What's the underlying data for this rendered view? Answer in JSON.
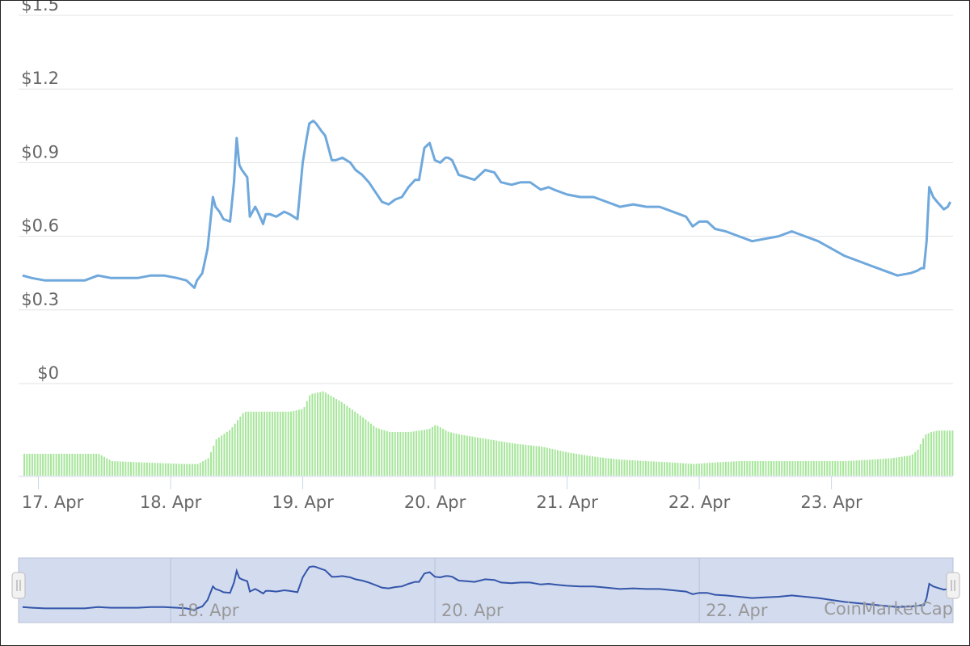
{
  "chart_data": {
    "type": "line",
    "price": {
      "ylim": [
        0,
        1.5
      ],
      "yticks": [
        0,
        0.3,
        0.6,
        0.9,
        1.2,
        1.5
      ],
      "ytick_labels": [
        "$0",
        "$0.3",
        "$0.6",
        "$0.9",
        "$1.2",
        "$1.5"
      ],
      "x": [
        16.88,
        16.95,
        17.05,
        17.15,
        17.25,
        17.35,
        17.45,
        17.55,
        17.65,
        17.75,
        17.85,
        17.95,
        18.05,
        18.12,
        18.18,
        18.2,
        18.24,
        18.28,
        18.32,
        18.34,
        18.37,
        18.4,
        18.45,
        18.48,
        18.5,
        18.52,
        18.54,
        18.58,
        18.6,
        18.64,
        18.66,
        18.7,
        18.72,
        18.75,
        18.8,
        18.86,
        18.9,
        18.96,
        19.0,
        19.03,
        19.05,
        19.08,
        19.1,
        19.14,
        19.17,
        19.2,
        19.22,
        19.25,
        19.3,
        19.36,
        19.4,
        19.45,
        19.5,
        19.55,
        19.6,
        19.65,
        19.7,
        19.75,
        19.8,
        19.85,
        19.88,
        19.92,
        19.96,
        20.0,
        20.04,
        20.08,
        20.1,
        20.13,
        20.18,
        20.24,
        20.3,
        20.38,
        20.45,
        20.5,
        20.58,
        20.65,
        20.72,
        20.8,
        20.86,
        20.9,
        20.95,
        21.0,
        21.1,
        21.2,
        21.3,
        21.4,
        21.5,
        21.6,
        21.7,
        21.8,
        21.9,
        21.95,
        22.0,
        22.06,
        22.12,
        22.2,
        22.3,
        22.4,
        22.5,
        22.6,
        22.7,
        22.8,
        22.9,
        23.0,
        23.1,
        23.2,
        23.3,
        23.4,
        23.5,
        23.6,
        23.65,
        23.68,
        23.7,
        23.72,
        23.74,
        23.77,
        23.8,
        23.85,
        23.88,
        23.9
      ],
      "y": [
        0.44,
        0.43,
        0.42,
        0.42,
        0.42,
        0.42,
        0.44,
        0.43,
        0.43,
        0.43,
        0.44,
        0.44,
        0.43,
        0.42,
        0.39,
        0.42,
        0.45,
        0.55,
        0.76,
        0.72,
        0.7,
        0.67,
        0.66,
        0.82,
        1.0,
        0.89,
        0.87,
        0.84,
        0.68,
        0.72,
        0.7,
        0.65,
        0.69,
        0.69,
        0.68,
        0.7,
        0.69,
        0.67,
        0.9,
        1.0,
        1.06,
        1.07,
        1.06,
        1.03,
        1.01,
        0.95,
        0.91,
        0.91,
        0.92,
        0.9,
        0.87,
        0.85,
        0.82,
        0.78,
        0.74,
        0.73,
        0.75,
        0.76,
        0.8,
        0.83,
        0.83,
        0.96,
        0.98,
        0.91,
        0.9,
        0.92,
        0.92,
        0.91,
        0.85,
        0.84,
        0.83,
        0.87,
        0.86,
        0.82,
        0.81,
        0.82,
        0.82,
        0.79,
        0.8,
        0.79,
        0.78,
        0.77,
        0.76,
        0.76,
        0.74,
        0.72,
        0.73,
        0.72,
        0.72,
        0.7,
        0.68,
        0.64,
        0.66,
        0.66,
        0.63,
        0.62,
        0.6,
        0.58,
        0.59,
        0.6,
        0.62,
        0.6,
        0.58,
        0.55,
        0.52,
        0.5,
        0.48,
        0.46,
        0.44,
        0.45,
        0.46,
        0.47,
        0.47,
        0.58,
        0.8,
        0.76,
        0.74,
        0.71,
        0.72,
        0.74
      ]
    },
    "volume": {
      "x": [
        16.88,
        17.05,
        17.25,
        17.45,
        17.55,
        17.8,
        18.1,
        18.2,
        18.28,
        18.34,
        18.45,
        18.55,
        18.7,
        18.9,
        19.0,
        19.05,
        19.15,
        19.3,
        19.45,
        19.55,
        19.65,
        19.8,
        19.95,
        20.0,
        20.1,
        20.2,
        20.4,
        20.6,
        20.8,
        21.0,
        21.2,
        21.4,
        21.6,
        21.8,
        21.95,
        22.1,
        22.3,
        22.6,
        22.9,
        23.1,
        23.3,
        23.45,
        23.6,
        23.65,
        23.7,
        23.75,
        23.8,
        23.9
      ],
      "v": [
        0.15,
        0.15,
        0.15,
        0.15,
        0.1,
        0.09,
        0.08,
        0.08,
        0.12,
        0.25,
        0.32,
        0.44,
        0.44,
        0.44,
        0.46,
        0.56,
        0.58,
        0.5,
        0.4,
        0.33,
        0.3,
        0.3,
        0.32,
        0.35,
        0.3,
        0.28,
        0.25,
        0.22,
        0.2,
        0.16,
        0.13,
        0.11,
        0.1,
        0.09,
        0.08,
        0.09,
        0.1,
        0.1,
        0.1,
        0.1,
        0.11,
        0.12,
        0.14,
        0.18,
        0.28,
        0.3,
        0.31,
        0.31
      ]
    },
    "x_ticks": [
      17,
      18,
      19,
      20,
      21,
      22,
      23
    ],
    "x_tick_labels": [
      "17. Apr",
      "18. Apr",
      "19. Apr",
      "20. Apr",
      "21. Apr",
      "22. Apr",
      "23. Apr"
    ],
    "navigator": {
      "labels": [
        "18. Apr",
        "20. Apr",
        "22. Apr"
      ],
      "label_x": [
        18,
        20,
        22
      ]
    },
    "credit": "CoinMarketCap",
    "colors": {
      "line": "#6fa8dc",
      "volume": "#a6e69a",
      "navigator_fill": "#d3dbee",
      "navigator_line": "#3355aa",
      "grid": "#e3e3e3"
    },
    "grid": true
  }
}
